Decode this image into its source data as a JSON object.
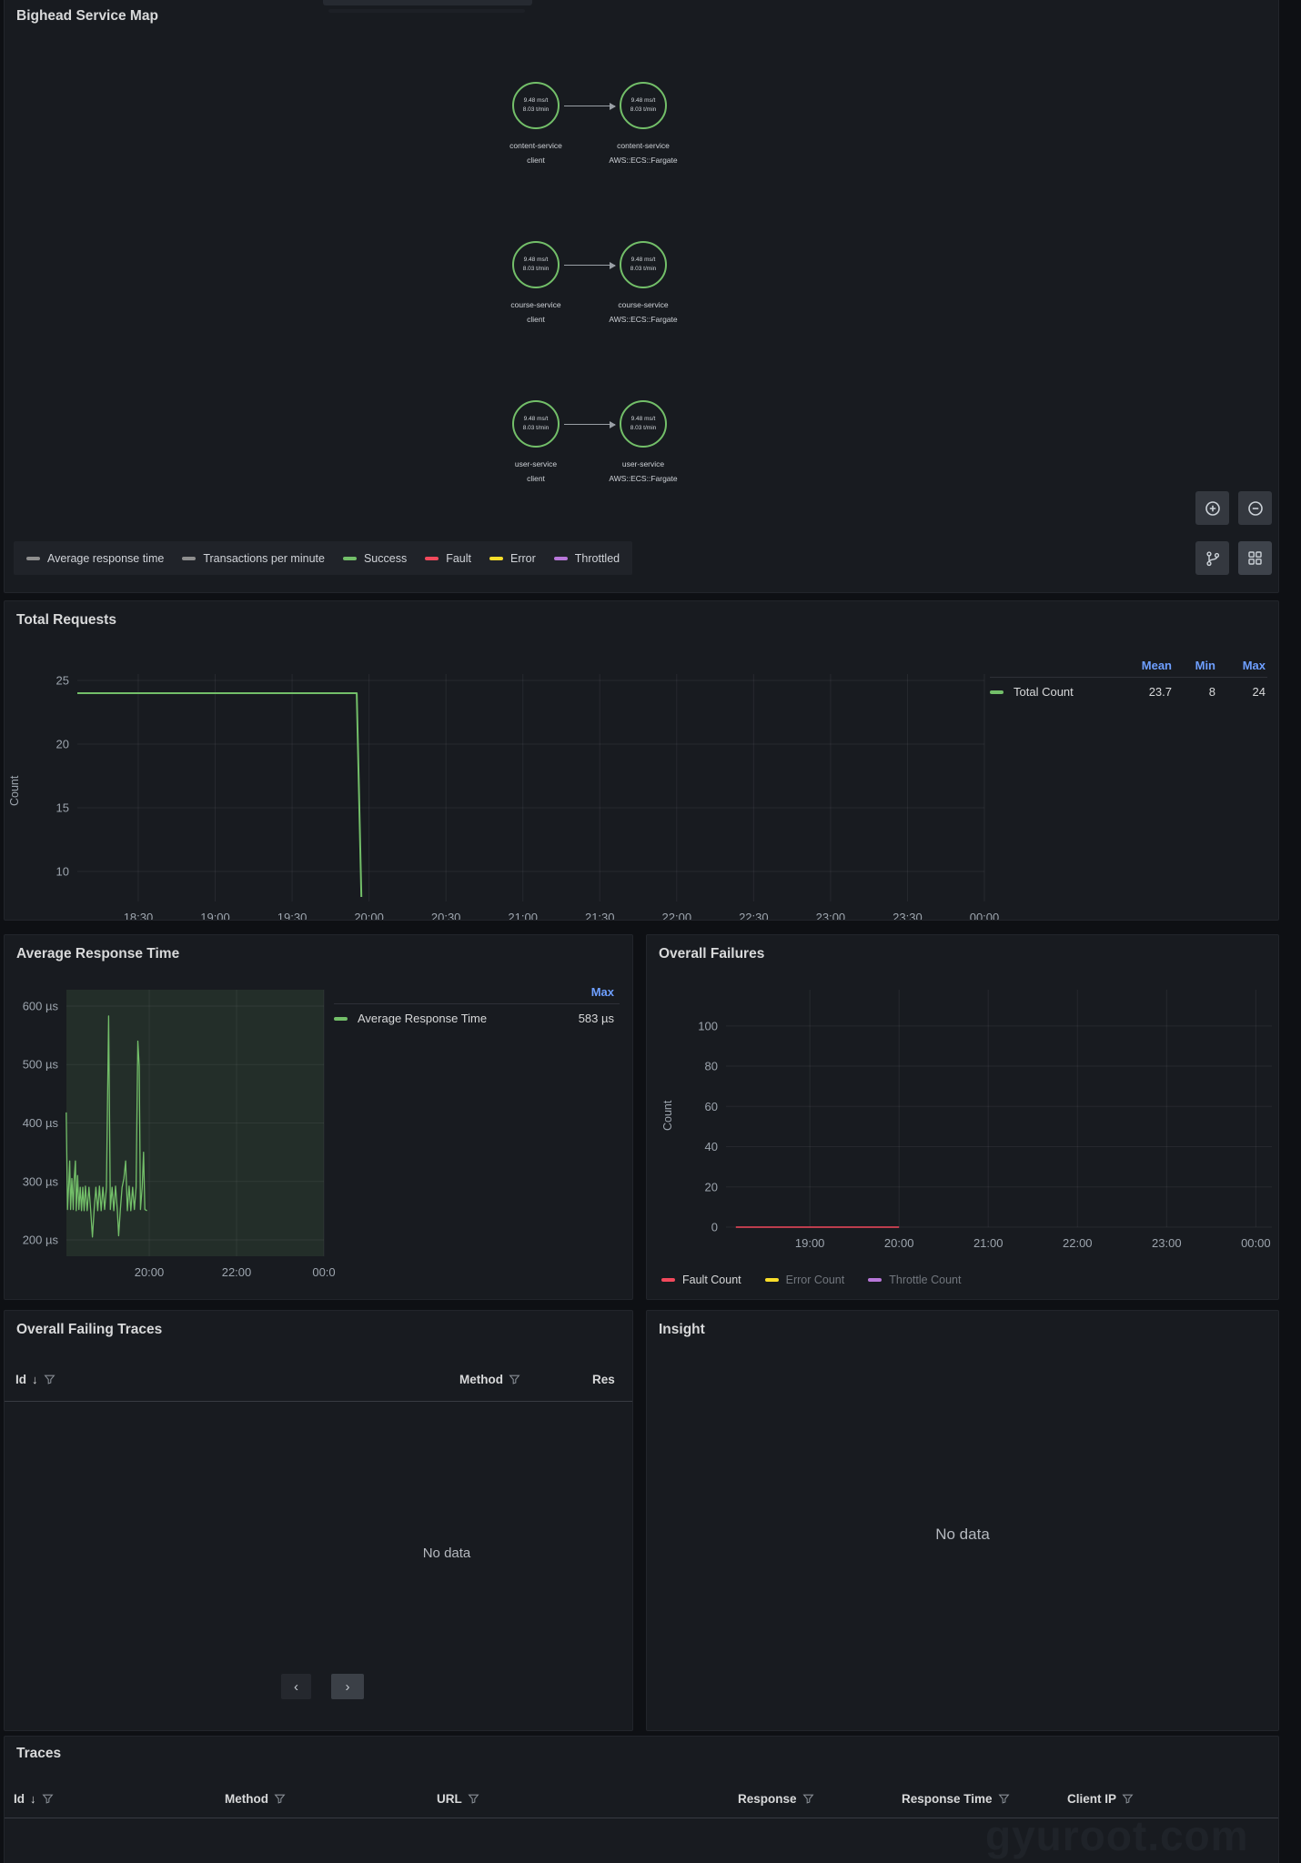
{
  "watermark": "gyuroot.com",
  "panels": {
    "service_map": {
      "title": "Bighead Service Map",
      "rows": [
        {
          "left": {
            "metric1": "9.48 ms/t",
            "metric2": "8.03 t/min",
            "label1": "content-service",
            "label2": "client"
          },
          "right": {
            "metric1": "9.48 ms/t",
            "metric2": "8.03 t/min",
            "label1": "content-service",
            "label2": "AWS::ECS::Fargate"
          }
        },
        {
          "left": {
            "metric1": "9.48 ms/t",
            "metric2": "8.03 t/min",
            "label1": "course-service",
            "label2": "client"
          },
          "right": {
            "metric1": "9.48 ms/t",
            "metric2": "8.03 t/min",
            "label1": "course-service",
            "label2": "AWS::ECS::Fargate"
          }
        },
        {
          "left": {
            "metric1": "9.48 ms/t",
            "metric2": "8.03 t/min",
            "label1": "user-service",
            "label2": "client"
          },
          "right": {
            "metric1": "9.48 ms/t",
            "metric2": "8.03 t/min",
            "label1": "user-service",
            "label2": "AWS::ECS::Fargate"
          }
        }
      ],
      "legend": [
        {
          "label": "Average response time",
          "color": "#8e8e8e"
        },
        {
          "label": "Transactions per minute",
          "color": "#8e8e8e"
        },
        {
          "label": "Success",
          "color": "#73bf69"
        },
        {
          "label": "Fault",
          "color": "#f2495c"
        },
        {
          "label": "Error",
          "color": "#fade2a"
        },
        {
          "label": "Throttled",
          "color": "#b877d9"
        }
      ],
      "toolbar_icons": [
        "zoom-in",
        "zoom-out",
        "layout-branch",
        "layout-grid"
      ]
    },
    "total_requests": {
      "title": "Total Requests",
      "y_axis_label": "Count",
      "legend": {
        "col_mean": "Mean",
        "col_min": "Min",
        "col_max": "Max",
        "series_label": "Total Count",
        "color": "#73bf69",
        "mean": "23.7",
        "min": "8",
        "max": "24"
      }
    },
    "avg_response_time": {
      "title": "Average Response Time",
      "legend": {
        "col_max": "Max",
        "series_label": "Average Response Time",
        "color": "#73bf69",
        "max": "583 µs"
      }
    },
    "overall_failures": {
      "title": "Overall Failures",
      "y_axis_label": "Count",
      "legend": [
        {
          "label": "Fault Count",
          "color": "#f2495c",
          "dimmed": false
        },
        {
          "label": "Error Count",
          "color": "#fade2a",
          "dimmed": true
        },
        {
          "label": "Throttle Count",
          "color": "#b877d9",
          "dimmed": true
        }
      ]
    },
    "overall_failing_traces": {
      "title": "Overall Failing Traces",
      "columns": [
        {
          "label": "Id"
        },
        {
          "label": "Method"
        },
        {
          "label": "Res"
        }
      ],
      "empty": "No data",
      "pagination": {
        "prev": "‹",
        "next": "›"
      }
    },
    "insight": {
      "title": "Insight",
      "empty": "No data"
    },
    "traces": {
      "title": "Traces",
      "columns": [
        {
          "label": "Id"
        },
        {
          "label": "Method"
        },
        {
          "label": "URL"
        },
        {
          "label": "Response"
        },
        {
          "label": "Response Time"
        },
        {
          "label": "Client IP"
        }
      ]
    }
  },
  "chart_data": [
    {
      "type": "line",
      "title": "Total Requests",
      "ylabel": "Count",
      "xlim": [
        18.104,
        24.0
      ],
      "ylim": [
        7.64,
        25.5
      ],
      "xticks": [
        [
          18.5,
          "18:30"
        ],
        [
          19,
          "19:00"
        ],
        [
          19.5,
          "19:30"
        ],
        [
          20,
          "20:00"
        ],
        [
          20.5,
          "20:30"
        ],
        [
          21,
          "21:00"
        ],
        [
          21.5,
          "21:30"
        ],
        [
          22,
          "22:00"
        ],
        [
          22.5,
          "22:30"
        ],
        [
          23,
          "23:00"
        ],
        [
          23.5,
          "23:30"
        ],
        [
          24,
          "00:00"
        ]
      ],
      "yticks": [
        [
          10,
          "10"
        ],
        [
          15,
          "15"
        ],
        [
          20,
          "20"
        ],
        [
          25,
          "25"
        ]
      ],
      "series": [
        {
          "name": "Total Count",
          "color": "#73bf69",
          "width": 2,
          "points": [
            [
              18.104,
              24
            ],
            [
              19.92,
              24
            ],
            [
              19.95,
              8
            ]
          ],
          "stats": {
            "mean": 23.7,
            "min": 8,
            "max": 24
          }
        }
      ],
      "grid": true,
      "legend_position": "right"
    },
    {
      "type": "line",
      "title": "Average Response Time",
      "ylabel": "",
      "unit": "µs",
      "xlim": [
        18.104,
        24.0
      ],
      "ylim": [
        172,
        628
      ],
      "xticks": [
        [
          20,
          "20:00"
        ],
        [
          22,
          "22:00"
        ],
        [
          24,
          "00:0"
        ]
      ],
      "yticks": [
        [
          200,
          "200 µs"
        ],
        [
          300,
          "300 µs"
        ],
        [
          400,
          "400 µs"
        ],
        [
          500,
          "500 µs"
        ],
        [
          600,
          "600 µs"
        ]
      ],
      "region": {
        "x0": 18.104,
        "x1": 24.0,
        "color": "rgba(115,191,105,0.12)"
      },
      "series": [
        {
          "name": "Average Response Time",
          "color": "#73bf69",
          "width": 1.3,
          "points": [
            [
              18.1,
              418
            ],
            [
              18.13,
              252
            ],
            [
              18.16,
              300
            ],
            [
              18.18,
              335
            ],
            [
              18.2,
              252
            ],
            [
              18.23,
              305
            ],
            [
              18.26,
              252
            ],
            [
              18.28,
              300
            ],
            [
              18.31,
              335
            ],
            [
              18.33,
              250
            ],
            [
              18.36,
              310
            ],
            [
              18.39,
              252
            ],
            [
              18.42,
              290
            ],
            [
              18.45,
              250
            ],
            [
              18.48,
              290
            ],
            [
              18.51,
              250
            ],
            [
              18.54,
              292
            ],
            [
              18.58,
              250
            ],
            [
              18.62,
              290
            ],
            [
              18.66,
              250
            ],
            [
              18.7,
              205
            ],
            [
              18.74,
              252
            ],
            [
              18.78,
              290
            ],
            [
              18.82,
              250
            ],
            [
              18.86,
              292
            ],
            [
              18.9,
              250
            ],
            [
              18.94,
              290
            ],
            [
              18.98,
              252
            ],
            [
              19.02,
              290
            ],
            [
              19.07,
              583
            ],
            [
              19.11,
              252
            ],
            [
              19.15,
              290
            ],
            [
              19.19,
              250
            ],
            [
              19.23,
              292
            ],
            [
              19.27,
              250
            ],
            [
              19.3,
              207
            ],
            [
              19.34,
              252
            ],
            [
              19.38,
              290
            ],
            [
              19.42,
              305
            ],
            [
              19.46,
              335
            ],
            [
              19.5,
              250
            ],
            [
              19.54,
              292
            ],
            [
              19.58,
              250
            ],
            [
              19.62,
              290
            ],
            [
              19.66,
              252
            ],
            [
              19.7,
              290
            ],
            [
              19.74,
              540
            ],
            [
              19.77,
              497
            ],
            [
              19.8,
              252
            ],
            [
              19.84,
              290
            ],
            [
              19.87,
              350
            ],
            [
              19.9,
              252
            ],
            [
              19.95,
              250
            ]
          ],
          "stats": {
            "max": 583
          }
        }
      ],
      "grid": true,
      "legend_position": "right"
    },
    {
      "type": "line",
      "title": "Overall Failures",
      "ylabel": "Count",
      "xlim": [
        18.06,
        24.18
      ],
      "ylim": [
        0,
        118
      ],
      "xticks": [
        [
          19,
          "19:00"
        ],
        [
          20,
          "20:00"
        ],
        [
          21,
          "21:00"
        ],
        [
          22,
          "22:00"
        ],
        [
          23,
          "23:00"
        ],
        [
          24,
          "00:00"
        ]
      ],
      "yticks": [
        [
          0,
          "0"
        ],
        [
          20,
          "20"
        ],
        [
          40,
          "40"
        ],
        [
          60,
          "60"
        ],
        [
          80,
          "80"
        ],
        [
          100,
          "100"
        ]
      ],
      "series": [
        {
          "name": "Fault Count",
          "color": "#f2495c",
          "width": 1.5,
          "points": [
            [
              18.17,
              0
            ],
            [
              20.0,
              0
            ]
          ]
        },
        {
          "name": "Error Count",
          "color": "#fade2a",
          "width": 1.5,
          "points": [],
          "hidden": true
        },
        {
          "name": "Throttle Count",
          "color": "#b877d9",
          "width": 1.5,
          "points": [],
          "hidden": true
        }
      ],
      "grid": true,
      "legend_position": "bottom"
    }
  ]
}
